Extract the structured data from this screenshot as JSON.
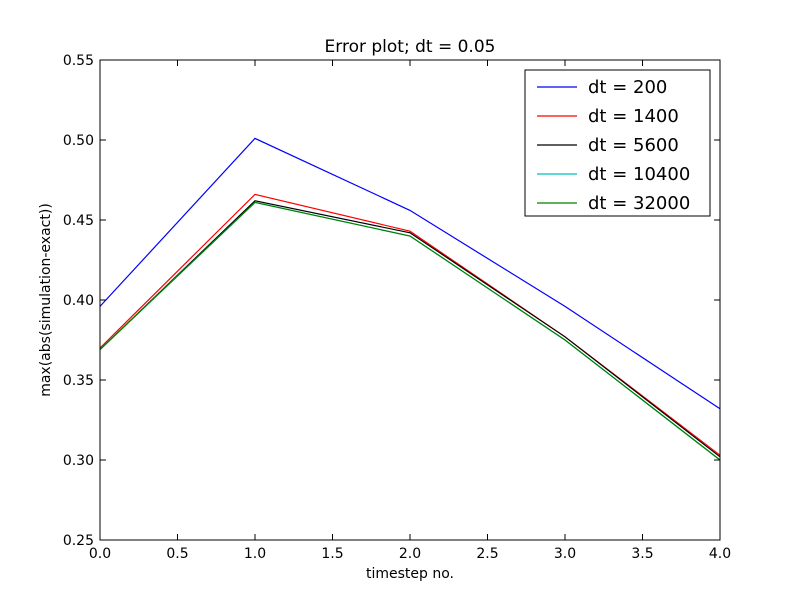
{
  "chart_data": {
    "type": "line",
    "title": "Error plot; dt = 0.05",
    "xlabel": "timestep no.",
    "ylabel": "max(abs(simulation-exact))",
    "xlim": [
      0.0,
      4.0
    ],
    "ylim": [
      0.25,
      0.55
    ],
    "xticks": [
      "0.0",
      "0.5",
      "1.0",
      "1.5",
      "2.0",
      "2.5",
      "3.0",
      "3.5",
      "4.0"
    ],
    "yticks": [
      "0.25",
      "0.30",
      "0.35",
      "0.40",
      "0.45",
      "0.50",
      "0.55"
    ],
    "grid": false,
    "legend_position": "top-right",
    "x": [
      0,
      1,
      2,
      3,
      4
    ],
    "series": [
      {
        "name": "dt = 200",
        "color": "#0000ff",
        "values": [
          0.396,
          0.501,
          0.456,
          0.396,
          0.332
        ]
      },
      {
        "name": "dt = 1400",
        "color": "#ff0000",
        "values": [
          0.37,
          0.466,
          0.443,
          0.377,
          0.303
        ]
      },
      {
        "name": "dt = 5600",
        "color": "#000000",
        "values": [
          0.369,
          0.462,
          0.442,
          0.377,
          0.302
        ]
      },
      {
        "name": "dt = 10400",
        "color": "#00bfbf",
        "values": [
          0.369,
          0.461,
          0.44,
          0.375,
          0.3
        ]
      },
      {
        "name": "dt = 32000",
        "color": "#008000",
        "values": [
          0.369,
          0.461,
          0.44,
          0.375,
          0.3
        ]
      }
    ]
  }
}
